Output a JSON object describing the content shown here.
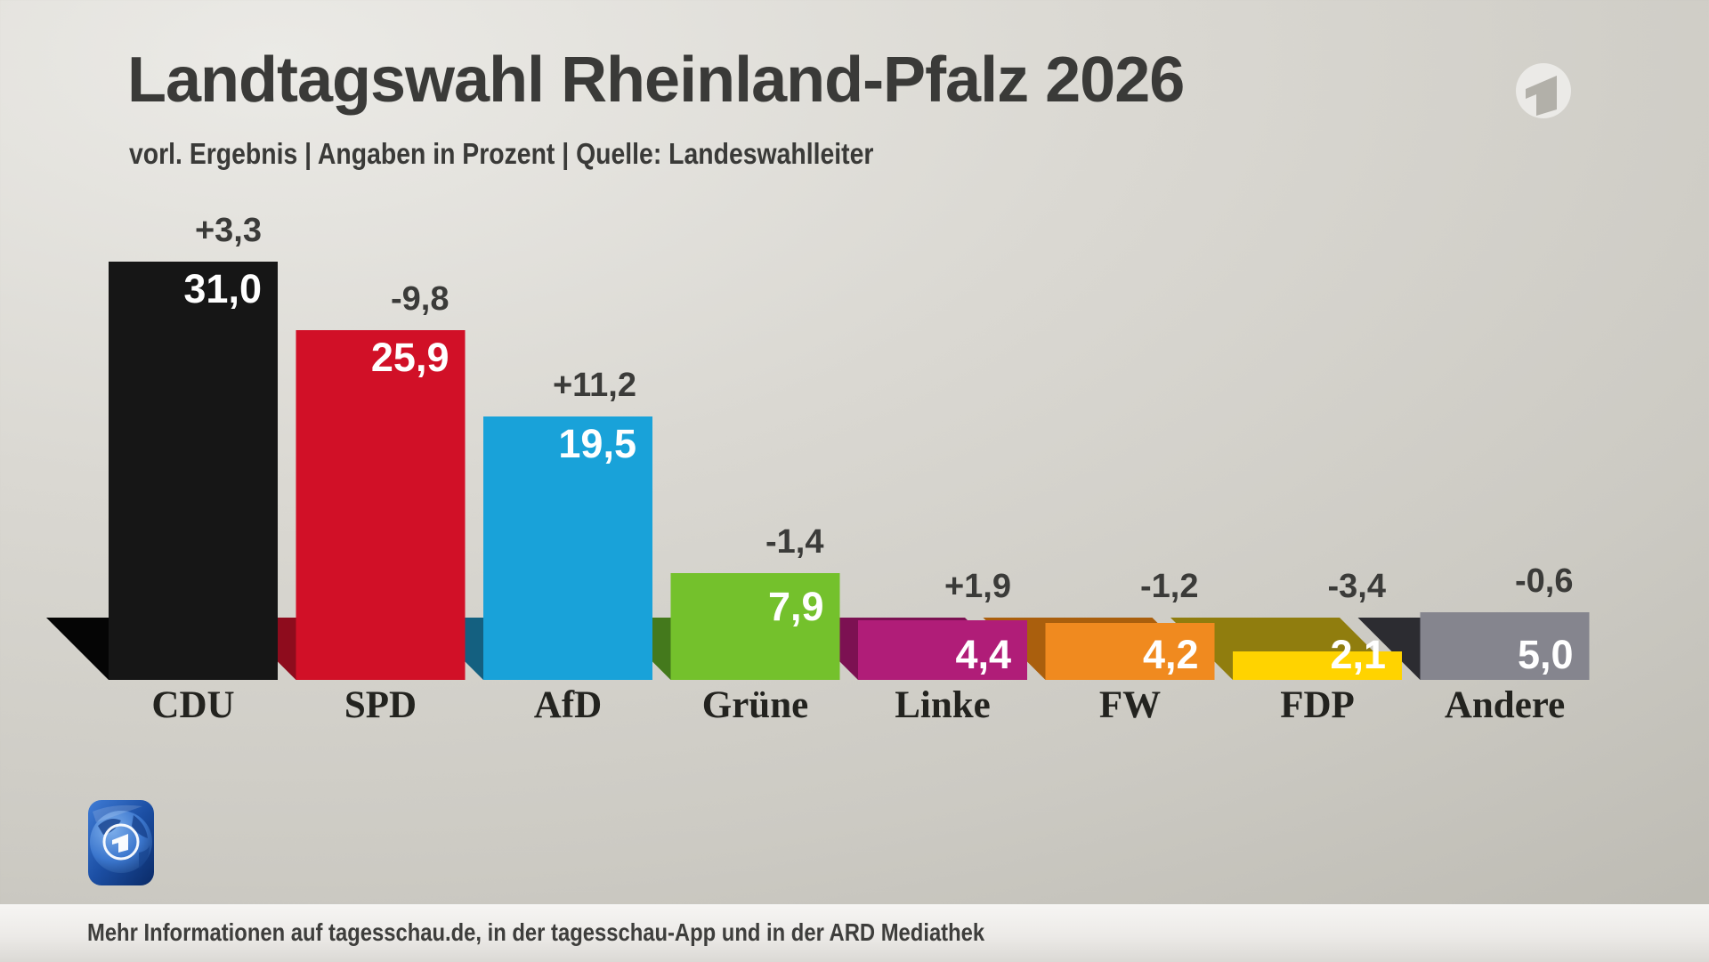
{
  "header": {
    "title": "Landtagswahl Rheinland-Pfalz 2026",
    "subtitle": "vorl. Ergebnis | Angaben in Prozent | Quelle: Landeswahlleiter"
  },
  "footer": {
    "info_text": "Mehr Informationen auf tagesschau.de, in der tagesschau-App und in der ARD Mediathek"
  },
  "logos": {
    "ard_logo": "ard-das-erste-1-logo",
    "app_logo": "tagesschau-app-icon"
  },
  "chart_data": {
    "type": "bar",
    "title": "Landtagswahl Rheinland-Pfalz 2026",
    "subtitle": "vorl. Ergebnis | Angaben in Prozent | Quelle: Landeswahlleiter",
    "unit": "percent",
    "categories": [
      "CDU",
      "SPD",
      "AfD",
      "Grüne",
      "Linke",
      "FW",
      "FDP",
      "Andere"
    ],
    "values": [
      31.0,
      25.9,
      19.5,
      7.9,
      4.4,
      4.2,
      2.1,
      5.0
    ],
    "value_labels": [
      "31,0",
      "25,9",
      "19,5",
      "7,9",
      "4,4",
      "4,2",
      "2,1",
      "5,0"
    ],
    "changes": [
      "+3,3",
      "-9,8",
      "+11,2",
      "-1,4",
      "+1,9",
      "-1,2",
      "-3,4",
      "-0,6"
    ],
    "colors": [
      "#161616",
      "#d11027",
      "#19a2d9",
      "#74c12c",
      "#b01d78",
      "#f08a1f",
      "#ffd300",
      "#85858e"
    ],
    "shadow_colors": [
      "#050505",
      "#8e0c1d",
      "#146080",
      "#44791c",
      "#7c1152",
      "#aa5f0d",
      "#907d0e",
      "#2c2c31"
    ],
    "ylim": [
      0,
      32
    ],
    "grid": false,
    "legend": false,
    "style": "pseudo-3d floor band, value labels inside bars, change labels above bars"
  }
}
